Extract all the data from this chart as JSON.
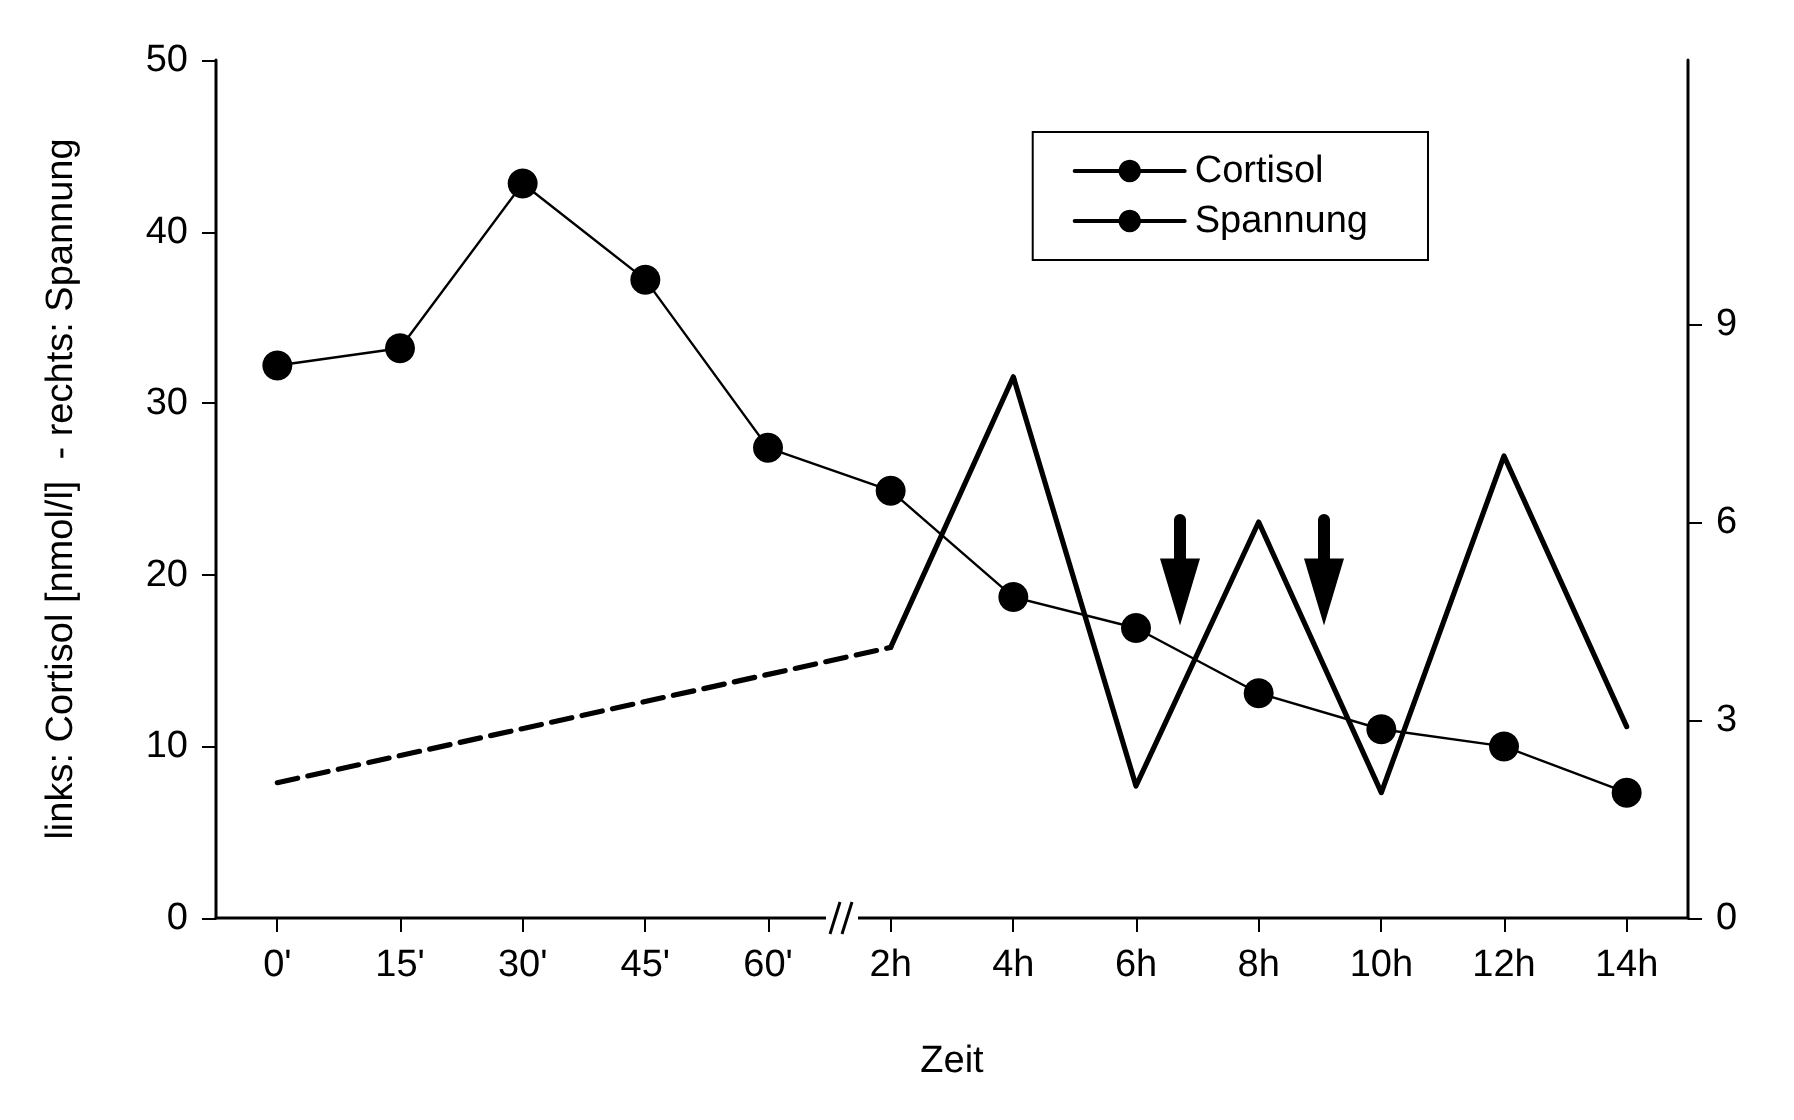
{
  "chart_data": {
    "type": "line",
    "xlabel": "Zeit",
    "ylabel": "links: Cortisol [nmol/l]  - rechts: Spannung",
    "categories": [
      "0'",
      "15'",
      "30'",
      "45'",
      "60'",
      "2h",
      "4h",
      "6h",
      "8h",
      "10h",
      "12h",
      "14h"
    ],
    "series": [
      {
        "name": "Cortisol",
        "color": "#000000",
        "marker": "circle",
        "line_style": "solid",
        "values": [
          32.2,
          33.2,
          42.8,
          37.2,
          27.4,
          24.9,
          18.7,
          16.9,
          13.1,
          11.0,
          10.0,
          7.3
        ]
      },
      {
        "name": "Spannung",
        "color": "#000000",
        "marker": "none",
        "line_style": "solid",
        "axis": "y2",
        "values": [
          null,
          null,
          null,
          null,
          null,
          4.1,
          8.2,
          2.0,
          6.0,
          1.9,
          7.0,
          2.9
        ]
      },
      {
        "color": "#000000",
        "marker": "none",
        "line_style": "dashed",
        "axis": "y2",
        "values": [
          2.05,
          null,
          null,
          null,
          null,
          4.1,
          null,
          null,
          null,
          null,
          null,
          null
        ]
      }
    ],
    "ylim": [
      0,
      50
    ],
    "yticks": [
      0,
      10,
      20,
      30,
      40,
      50
    ],
    "y2lim": [
      0,
      13
    ],
    "y2ticks": [
      0,
      3,
      6,
      9
    ],
    "grid": false,
    "legend": "top right"
  }
}
